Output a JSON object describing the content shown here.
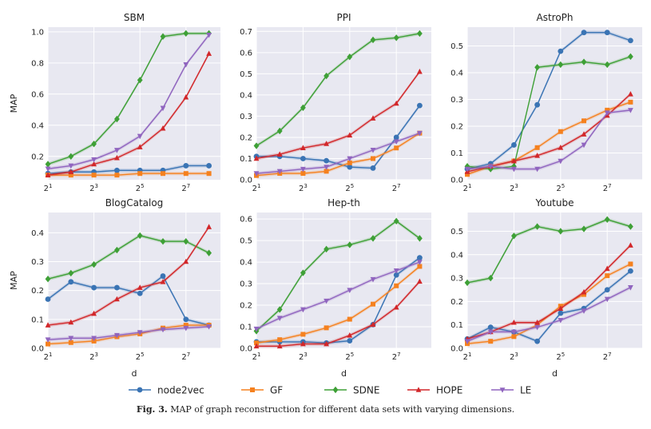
{
  "figure": {
    "caption_label": "Fig. 3.",
    "caption_text": "MAP of graph reconstruction for different data sets with varying dimensions."
  },
  "legend": [
    {
      "name": "node2vec",
      "color": "#3a74b4",
      "marker": "circle"
    },
    {
      "name": "GF",
      "color": "#f5811f",
      "marker": "square"
    },
    {
      "name": "SDNE",
      "color": "#3ea036",
      "marker": "diamond"
    },
    {
      "name": "HOPE",
      "color": "#d2272a",
      "marker": "triangle-up"
    },
    {
      "name": "LE",
      "color": "#9065bf",
      "marker": "triangle-down"
    }
  ],
  "chart_data": [
    {
      "type": "line",
      "title": "SBM",
      "xlabel": "",
      "ylabel": "MAP",
      "x": [
        1,
        2,
        3,
        4,
        5,
        6,
        7,
        8
      ],
      "x_scale": "log2",
      "ylim": [
        0.05,
        1.03
      ],
      "yticks": [
        0.2,
        0.4,
        0.6,
        0.8,
        1.0
      ],
      "ytick_labels": [
        "0.2",
        "0.4",
        "0.6",
        "0.8",
        "1.0"
      ],
      "grid": true,
      "legend": "bottom-center (shared)",
      "series": [
        {
          "name": "node2vec",
          "values": [
            0.09,
            0.1,
            0.1,
            0.11,
            0.11,
            0.11,
            0.14,
            0.14
          ]
        },
        {
          "name": "GF",
          "values": [
            0.08,
            0.08,
            0.08,
            0.08,
            0.09,
            0.09,
            0.09,
            0.09
          ]
        },
        {
          "name": "SDNE",
          "values": [
            0.15,
            0.2,
            0.28,
            0.44,
            0.69,
            0.97,
            0.99,
            0.99
          ]
        },
        {
          "name": "HOPE",
          "values": [
            0.08,
            0.1,
            0.15,
            0.19,
            0.26,
            0.38,
            0.58,
            0.86
          ]
        },
        {
          "name": "LE",
          "values": [
            0.12,
            0.14,
            0.18,
            0.24,
            0.33,
            0.51,
            0.79,
            0.98
          ]
        }
      ]
    },
    {
      "type": "line",
      "title": "PPI",
      "xlabel": "",
      "ylabel": "",
      "x": [
        1,
        2,
        3,
        4,
        5,
        6,
        7,
        8
      ],
      "x_scale": "log2",
      "ylim": [
        0.0,
        0.72
      ],
      "yticks": [
        0.0,
        0.1,
        0.2,
        0.3,
        0.4,
        0.5,
        0.6,
        0.7
      ],
      "ytick_labels": [
        "0.0",
        "0.1",
        "0.2",
        "0.3",
        "0.4",
        "0.5",
        "0.6",
        "0.7"
      ],
      "grid": true,
      "series": [
        {
          "name": "node2vec",
          "values": [
            0.11,
            0.11,
            0.1,
            0.09,
            0.06,
            0.055,
            0.2,
            0.35
          ]
        },
        {
          "name": "GF",
          "values": [
            0.02,
            0.03,
            0.03,
            0.04,
            0.08,
            0.1,
            0.15,
            0.22
          ]
        },
        {
          "name": "SDNE",
          "values": [
            0.16,
            0.23,
            0.34,
            0.49,
            0.58,
            0.66,
            0.67,
            0.69
          ]
        },
        {
          "name": "HOPE",
          "values": [
            0.1,
            0.12,
            0.15,
            0.17,
            0.21,
            0.29,
            0.36,
            0.51
          ]
        },
        {
          "name": "LE",
          "values": [
            0.03,
            0.04,
            0.05,
            0.06,
            0.1,
            0.14,
            0.18,
            0.22
          ]
        }
      ]
    },
    {
      "type": "line",
      "title": "AstroPh",
      "xlabel": "",
      "ylabel": "",
      "x": [
        1,
        2,
        3,
        4,
        5,
        6,
        7,
        8
      ],
      "x_scale": "log2",
      "ylim": [
        0.0,
        0.57
      ],
      "yticks": [
        0.0,
        0.1,
        0.2,
        0.3,
        0.4,
        0.5
      ],
      "ytick_labels": [
        "0.0",
        "0.1",
        "0.2",
        "0.3",
        "0.4",
        "0.5"
      ],
      "grid": true,
      "series": [
        {
          "name": "node2vec",
          "values": [
            0.04,
            0.06,
            0.13,
            0.28,
            0.48,
            0.55,
            0.55,
            0.52
          ]
        },
        {
          "name": "GF",
          "values": [
            0.02,
            0.05,
            0.07,
            0.12,
            0.18,
            0.22,
            0.26,
            0.29
          ]
        },
        {
          "name": "SDNE",
          "values": [
            0.05,
            0.04,
            0.05,
            0.42,
            0.43,
            0.44,
            0.43,
            0.46
          ]
        },
        {
          "name": "HOPE",
          "values": [
            0.03,
            0.05,
            0.07,
            0.09,
            0.12,
            0.17,
            0.24,
            0.32
          ]
        },
        {
          "name": "LE",
          "values": [
            0.04,
            0.05,
            0.04,
            0.04,
            0.07,
            0.13,
            0.25,
            0.26
          ]
        }
      ]
    },
    {
      "type": "line",
      "title": "BlogCatalog",
      "xlabel": "d",
      "ylabel": "MAP",
      "x": [
        1,
        2,
        3,
        4,
        5,
        6,
        7,
        8
      ],
      "x_scale": "log2",
      "ylim": [
        0.0,
        0.47
      ],
      "yticks": [
        0.0,
        0.1,
        0.2,
        0.3,
        0.4
      ],
      "ytick_labels": [
        "0.0",
        "0.1",
        "0.2",
        "0.3",
        "0.4"
      ],
      "grid": true,
      "series": [
        {
          "name": "node2vec",
          "values": [
            0.17,
            0.23,
            0.21,
            0.21,
            0.19,
            0.25,
            0.1,
            0.08
          ]
        },
        {
          "name": "GF",
          "values": [
            0.015,
            0.02,
            0.025,
            0.04,
            0.05,
            0.07,
            0.08,
            0.08
          ]
        },
        {
          "name": "SDNE",
          "values": [
            0.24,
            0.26,
            0.29,
            0.34,
            0.39,
            0.37,
            0.37,
            0.33
          ]
        },
        {
          "name": "HOPE",
          "values": [
            0.08,
            0.09,
            0.12,
            0.17,
            0.21,
            0.23,
            0.3,
            0.42
          ]
        },
        {
          "name": "LE",
          "values": [
            0.03,
            0.035,
            0.035,
            0.045,
            0.055,
            0.065,
            0.07,
            0.075
          ]
        }
      ]
    },
    {
      "type": "line",
      "title": "Hep-th",
      "xlabel": "d",
      "ylabel": "",
      "x": [
        1,
        2,
        3,
        4,
        5,
        6,
        7,
        8
      ],
      "x_scale": "log2",
      "ylim": [
        0.0,
        0.63
      ],
      "yticks": [
        0.0,
        0.1,
        0.2,
        0.3,
        0.4,
        0.5,
        0.6
      ],
      "ytick_labels": [
        "0.0",
        "0.1",
        "0.2",
        "0.3",
        "0.4",
        "0.5",
        "0.6"
      ],
      "grid": true,
      "series": [
        {
          "name": "node2vec",
          "values": [
            0.03,
            0.03,
            0.03,
            0.025,
            0.035,
            0.11,
            0.34,
            0.42
          ]
        },
        {
          "name": "GF",
          "values": [
            0.025,
            0.04,
            0.065,
            0.095,
            0.135,
            0.205,
            0.29,
            0.38
          ]
        },
        {
          "name": "SDNE",
          "values": [
            0.08,
            0.18,
            0.35,
            0.46,
            0.48,
            0.51,
            0.59,
            0.51
          ]
        },
        {
          "name": "HOPE",
          "values": [
            0.01,
            0.01,
            0.02,
            0.02,
            0.06,
            0.11,
            0.19,
            0.31
          ]
        },
        {
          "name": "LE",
          "values": [
            0.09,
            0.14,
            0.18,
            0.22,
            0.27,
            0.32,
            0.36,
            0.4
          ]
        }
      ]
    },
    {
      "type": "line",
      "title": "Youtube",
      "xlabel": "d",
      "ylabel": "",
      "x": [
        1,
        2,
        3,
        4,
        5,
        6,
        7,
        8
      ],
      "x_scale": "log2",
      "ylim": [
        0.0,
        0.58
      ],
      "yticks": [
        0.0,
        0.1,
        0.2,
        0.3,
        0.4,
        0.5
      ],
      "ytick_labels": [
        "0.0",
        "0.1",
        "0.2",
        "0.3",
        "0.4",
        "0.5"
      ],
      "grid": true,
      "series": [
        {
          "name": "node2vec",
          "values": [
            0.04,
            0.09,
            0.07,
            0.03,
            0.15,
            0.17,
            0.25,
            0.33
          ]
        },
        {
          "name": "GF",
          "values": [
            0.02,
            0.03,
            0.05,
            0.1,
            0.18,
            0.23,
            0.31,
            0.36
          ]
        },
        {
          "name": "SDNE",
          "values": [
            0.28,
            0.3,
            0.48,
            0.52,
            0.5,
            0.51,
            0.55,
            0.52
          ]
        },
        {
          "name": "HOPE",
          "values": [
            0.04,
            0.07,
            0.11,
            0.11,
            0.17,
            0.24,
            0.34,
            0.44
          ]
        },
        {
          "name": "LE",
          "values": [
            0.03,
            0.07,
            0.07,
            0.09,
            0.12,
            0.16,
            0.21,
            0.26
          ]
        }
      ]
    }
  ]
}
